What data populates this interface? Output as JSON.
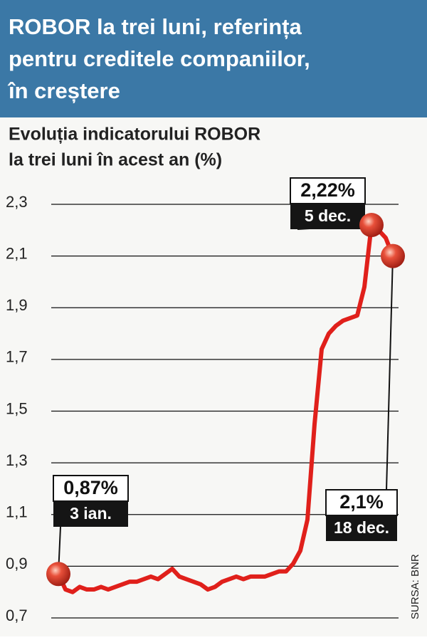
{
  "chart_data": {
    "type": "line",
    "title": [
      "ROBOR la trei luni, referința",
      "pentru creditele companiilor,",
      "în creștere"
    ],
    "subtitle": [
      "Evoluția indicatorului ROBOR",
      "la trei luni în acest an (%)"
    ],
    "source": "SURSA: BNR",
    "ylim": [
      0.7,
      2.3
    ],
    "yticks": [
      {
        "value": 0.7,
        "label": "0,7"
      },
      {
        "value": 0.9,
        "label": "0,9"
      },
      {
        "value": 1.1,
        "label": "1,1"
      },
      {
        "value": 1.3,
        "label": "1,3"
      },
      {
        "value": 1.5,
        "label": "1,5"
      },
      {
        "value": 1.7,
        "label": "1,7"
      },
      {
        "value": 1.9,
        "label": "1,9"
      },
      {
        "value": 2.1,
        "label": "2,1"
      },
      {
        "value": 2.3,
        "label": "2,3"
      }
    ],
    "grid": true,
    "categories": [
      "3 ian.",
      null,
      null,
      null,
      null,
      null,
      null,
      null,
      null,
      null,
      null,
      null,
      null,
      null,
      null,
      null,
      null,
      null,
      null,
      null,
      null,
      null,
      null,
      null,
      null,
      null,
      null,
      null,
      null,
      null,
      null,
      null,
      null,
      null,
      null,
      null,
      null,
      null,
      null,
      null,
      null,
      null,
      null,
      null,
      "5 dec.",
      null,
      null,
      "18 dec."
    ],
    "series": [
      {
        "name": "ROBOR 3M",
        "color": "#e0201b",
        "values": [
          0.87,
          0.81,
          0.8,
          0.82,
          0.81,
          0.81,
          0.82,
          0.81,
          0.82,
          0.83,
          0.84,
          0.84,
          0.85,
          0.86,
          0.85,
          0.87,
          0.89,
          0.86,
          0.85,
          0.84,
          0.83,
          0.81,
          0.82,
          0.84,
          0.85,
          0.86,
          0.85,
          0.86,
          0.86,
          0.86,
          0.87,
          0.88,
          0.88,
          0.91,
          0.96,
          1.08,
          1.45,
          1.74,
          1.8,
          1.83,
          1.85,
          1.86,
          1.87,
          1.98,
          2.22,
          2.2,
          2.17,
          2.1
        ],
        "value_labels": [
          "0,87%",
          null,
          null,
          null,
          null,
          null,
          null,
          null,
          null,
          null,
          null,
          null,
          null,
          null,
          null,
          null,
          null,
          null,
          null,
          null,
          null,
          null,
          null,
          null,
          null,
          null,
          null,
          null,
          null,
          null,
          null,
          null,
          null,
          null,
          null,
          null,
          null,
          null,
          null,
          null,
          null,
          null,
          null,
          null,
          "2,22%",
          null,
          null,
          "2,1%"
        ]
      }
    ]
  }
}
